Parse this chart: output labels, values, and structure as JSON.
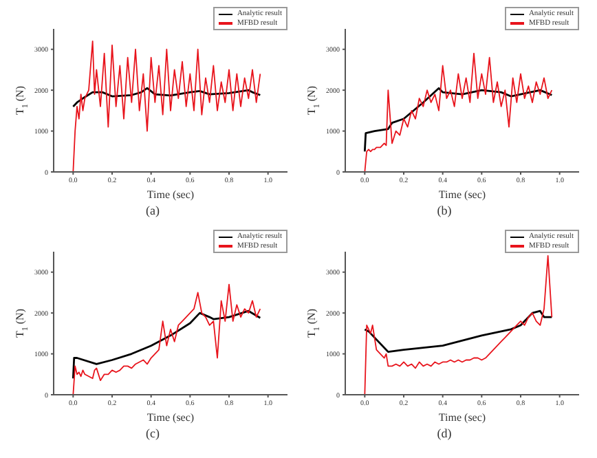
{
  "chart_data": [
    {
      "type": "line",
      "xlabel": "Time (sec)",
      "ylabel": "T$_{1}$ (N)",
      "annotations": [
        "(a)"
      ],
      "xlim": [
        -0.1,
        1.1
      ],
      "xticks": [
        {
          "value": 0,
          "label": "0.0"
        },
        {
          "value": 0.2,
          "label": "0.2"
        },
        {
          "value": 0.4,
          "label": "0.4"
        },
        {
          "value": 0.6,
          "label": "0.6"
        },
        {
          "value": 0.8,
          "label": "0.8"
        },
        {
          "value": 1,
          "label": "1.0"
        }
      ],
      "ylim": [
        0,
        3500
      ],
      "yticks": [
        0,
        1000,
        2000,
        3000
      ],
      "legend": "top right",
      "marker": "none",
      "line_style": "solid",
      "series": [
        {
          "name": "Analytic result",
          "color": "#000000",
          "x": [
            0,
            0.02,
            0.05,
            0.1,
            0.15,
            0.2,
            0.3,
            0.35,
            0.38,
            0.42,
            0.5,
            0.6,
            0.65,
            0.7,
            0.8,
            0.9,
            0.92,
            0.96
          ],
          "values": [
            1600,
            1700,
            1800,
            1950,
            1950,
            1850,
            1880,
            1950,
            2050,
            1900,
            1870,
            1950,
            1980,
            1900,
            1930,
            2000,
            1950,
            1880
          ]
        },
        {
          "name": "MFBD result",
          "color": "#e8141c",
          "x": [
            0,
            0.01,
            0.02,
            0.03,
            0.04,
            0.05,
            0.06,
            0.08,
            0.1,
            0.11,
            0.12,
            0.14,
            0.16,
            0.18,
            0.2,
            0.22,
            0.24,
            0.26,
            0.28,
            0.3,
            0.32,
            0.34,
            0.36,
            0.38,
            0.4,
            0.42,
            0.44,
            0.46,
            0.48,
            0.5,
            0.52,
            0.54,
            0.56,
            0.58,
            0.6,
            0.62,
            0.64,
            0.66,
            0.68,
            0.7,
            0.72,
            0.74,
            0.76,
            0.78,
            0.8,
            0.82,
            0.84,
            0.86,
            0.88,
            0.9,
            0.92,
            0.94,
            0.96
          ],
          "values": [
            0,
            1000,
            1600,
            1300,
            1900,
            1500,
            1800,
            2000,
            3200,
            1900,
            2500,
            1600,
            2900,
            1100,
            3100,
            1600,
            2600,
            1300,
            2800,
            1700,
            3000,
            1500,
            2400,
            1000,
            2800,
            1700,
            2600,
            1400,
            3000,
            1500,
            2500,
            1800,
            2700,
            1600,
            2400,
            1500,
            3000,
            1400,
            2300,
            1700,
            2600,
            1500,
            2200,
            1700,
            2500,
            1500,
            2400,
            1600,
            2300,
            1800,
            2500,
            1700,
            2400
          ]
        }
      ]
    },
    {
      "type": "line",
      "xlabel": "Time (sec)",
      "ylabel": "T$_{1}$ (N)",
      "annotations": [
        "(b)"
      ],
      "xlim": [
        -0.1,
        1.1
      ],
      "xticks": [
        {
          "value": 0,
          "label": "0.0"
        },
        {
          "value": 0.2,
          "label": "0.2"
        },
        {
          "value": 0.4,
          "label": "0.4"
        },
        {
          "value": 0.6,
          "label": "0.6"
        },
        {
          "value": 0.8,
          "label": "0.8"
        },
        {
          "value": 1,
          "label": "1.0"
        }
      ],
      "ylim": [
        0,
        3500
      ],
      "yticks": [
        0,
        1000,
        2000,
        3000
      ],
      "legend": "top right",
      "marker": "none",
      "line_style": "solid",
      "series": [
        {
          "name": "Analytic result",
          "color": "#000000",
          "x": [
            0,
            0.005,
            0.05,
            0.12,
            0.14,
            0.2,
            0.3,
            0.38,
            0.4,
            0.5,
            0.6,
            0.7,
            0.75,
            0.8,
            0.9,
            0.96
          ],
          "values": [
            500,
            950,
            1000,
            1050,
            1200,
            1300,
            1700,
            2050,
            1950,
            1900,
            2000,
            1950,
            1850,
            1900,
            2000,
            1880
          ]
        },
        {
          "name": "MFBD result",
          "color": "#e8141c",
          "x": [
            0,
            0.01,
            0.02,
            0.03,
            0.04,
            0.05,
            0.06,
            0.08,
            0.1,
            0.11,
            0.12,
            0.14,
            0.16,
            0.18,
            0.2,
            0.22,
            0.24,
            0.26,
            0.28,
            0.3,
            0.32,
            0.34,
            0.36,
            0.38,
            0.4,
            0.42,
            0.44,
            0.46,
            0.48,
            0.5,
            0.52,
            0.54,
            0.56,
            0.58,
            0.6,
            0.62,
            0.64,
            0.66,
            0.68,
            0.7,
            0.72,
            0.74,
            0.76,
            0.78,
            0.8,
            0.82,
            0.84,
            0.86,
            0.88,
            0.9,
            0.92,
            0.94,
            0.96
          ],
          "values": [
            0,
            500,
            550,
            500,
            550,
            550,
            600,
            600,
            700,
            650,
            2000,
            700,
            1000,
            900,
            1300,
            1100,
            1500,
            1300,
            1800,
            1600,
            2000,
            1700,
            1900,
            1500,
            2600,
            1800,
            2000,
            1600,
            2400,
            1800,
            2300,
            1700,
            2900,
            1800,
            2400,
            1900,
            2800,
            1700,
            2200,
            1600,
            2000,
            1100,
            2300,
            1700,
            2400,
            1800,
            2100,
            1700,
            2200,
            1900,
            2300,
            1800,
            2000
          ]
        }
      ]
    },
    {
      "type": "line",
      "xlabel": "Time (sec)",
      "ylabel": "T$_{1}$ (N)",
      "annotations": [
        "(c)"
      ],
      "xlim": [
        -0.1,
        1.1
      ],
      "xticks": [
        {
          "value": 0,
          "label": "0.0"
        },
        {
          "value": 0.2,
          "label": "0.2"
        },
        {
          "value": 0.4,
          "label": "0.4"
        },
        {
          "value": 0.6,
          "label": "0.6"
        },
        {
          "value": 0.8,
          "label": "0.8"
        },
        {
          "value": 1,
          "label": "1.0"
        }
      ],
      "ylim": [
        0,
        3500
      ],
      "yticks": [
        0,
        1000,
        2000,
        3000
      ],
      "legend": "top right",
      "marker": "none",
      "line_style": "solid",
      "series": [
        {
          "name": "Analytic result",
          "color": "#000000",
          "x": [
            0,
            0.005,
            0.02,
            0.12,
            0.2,
            0.3,
            0.4,
            0.5,
            0.6,
            0.65,
            0.7,
            0.72,
            0.8,
            0.9,
            0.96
          ],
          "values": [
            400,
            900,
            900,
            750,
            850,
            1000,
            1200,
            1450,
            1750,
            2000,
            1900,
            1850,
            1900,
            2050,
            1880
          ]
        },
        {
          "name": "MFBD result",
          "color": "#e8141c",
          "x": [
            0,
            0.01,
            0.02,
            0.03,
            0.04,
            0.05,
            0.06,
            0.08,
            0.1,
            0.11,
            0.12,
            0.14,
            0.16,
            0.18,
            0.2,
            0.22,
            0.24,
            0.26,
            0.28,
            0.3,
            0.32,
            0.34,
            0.36,
            0.38,
            0.4,
            0.42,
            0.44,
            0.46,
            0.48,
            0.5,
            0.52,
            0.54,
            0.56,
            0.58,
            0.6,
            0.62,
            0.64,
            0.66,
            0.68,
            0.7,
            0.72,
            0.74,
            0.76,
            0.78,
            0.8,
            0.82,
            0.84,
            0.86,
            0.88,
            0.9,
            0.92,
            0.94,
            0.96
          ],
          "values": [
            0,
            700,
            500,
            550,
            450,
            600,
            500,
            450,
            400,
            600,
            650,
            350,
            500,
            500,
            600,
            550,
            600,
            700,
            700,
            650,
            750,
            800,
            850,
            750,
            900,
            1000,
            1100,
            1800,
            1200,
            1600,
            1300,
            1700,
            1800,
            1900,
            2000,
            2100,
            2500,
            2000,
            1900,
            1700,
            1800,
            900,
            2300,
            1800,
            2700,
            1800,
            2200,
            1900,
            2100,
            2000,
            2300,
            1900,
            2100
          ]
        }
      ]
    },
    {
      "type": "line",
      "xlabel": "Time (sec)",
      "ylabel": "T$_{1}$ (N)",
      "annotations": [
        "(d)"
      ],
      "xlim": [
        -0.1,
        1.1
      ],
      "xticks": [
        {
          "value": 0,
          "label": "0.0"
        },
        {
          "value": 0.2,
          "label": "0.2"
        },
        {
          "value": 0.4,
          "label": "0.4"
        },
        {
          "value": 0.6,
          "label": "0.6"
        },
        {
          "value": 0.8,
          "label": "0.8"
        },
        {
          "value": 1,
          "label": "1.0"
        }
      ],
      "ylim": [
        0,
        3500
      ],
      "yticks": [
        0,
        1000,
        2000,
        3000
      ],
      "legend": "top right",
      "marker": "none",
      "line_style": "solid",
      "series": [
        {
          "name": "Analytic result",
          "color": "#000000",
          "x": [
            0,
            0.02,
            0.12,
            0.2,
            0.4,
            0.6,
            0.75,
            0.8,
            0.86,
            0.9,
            0.92,
            0.96
          ],
          "values": [
            1600,
            1550,
            1050,
            1100,
            1200,
            1450,
            1600,
            1700,
            2000,
            2050,
            1900,
            1900
          ]
        },
        {
          "name": "MFBD result",
          "color": "#e8141c",
          "x": [
            0,
            0.01,
            0.02,
            0.03,
            0.04,
            0.05,
            0.06,
            0.08,
            0.1,
            0.11,
            0.12,
            0.14,
            0.16,
            0.18,
            0.2,
            0.22,
            0.24,
            0.26,
            0.28,
            0.3,
            0.32,
            0.34,
            0.36,
            0.38,
            0.4,
            0.42,
            0.44,
            0.46,
            0.48,
            0.5,
            0.52,
            0.54,
            0.56,
            0.58,
            0.6,
            0.62,
            0.64,
            0.66,
            0.68,
            0.7,
            0.72,
            0.74,
            0.76,
            0.78,
            0.8,
            0.82,
            0.84,
            0.86,
            0.88,
            0.9,
            0.92,
            0.94,
            0.96
          ],
          "values": [
            0,
            1700,
            1600,
            1500,
            1700,
            1400,
            1100,
            1000,
            900,
            1000,
            700,
            700,
            750,
            700,
            800,
            700,
            750,
            650,
            800,
            700,
            750,
            700,
            800,
            750,
            800,
            800,
            850,
            800,
            850,
            800,
            850,
            850,
            900,
            900,
            850,
            900,
            1000,
            1100,
            1200,
            1300,
            1400,
            1500,
            1600,
            1700,
            1800,
            1700,
            1900,
            2000,
            1800,
            1700,
            2100,
            3400,
            1900
          ]
        }
      ]
    }
  ]
}
